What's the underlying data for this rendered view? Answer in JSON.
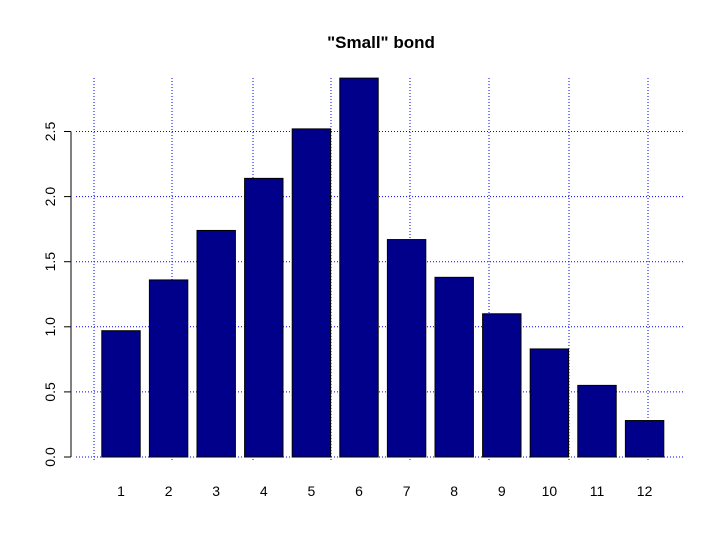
{
  "chart_data": {
    "type": "bar",
    "title": "\"Small\" bond",
    "xlabel": "",
    "ylabel": "",
    "categories": [
      "1",
      "2",
      "3",
      "4",
      "5",
      "6",
      "7",
      "8",
      "9",
      "10",
      "11",
      "12"
    ],
    "values": [
      0.97,
      1.36,
      1.74,
      2.14,
      2.52,
      2.91,
      1.67,
      1.38,
      1.1,
      0.83,
      0.55,
      0.28
    ],
    "ylim": [
      0,
      2.91
    ],
    "yticks": [
      "0.0",
      "0.5",
      "1.0",
      "1.5",
      "2.0",
      "2.5"
    ],
    "grid": true,
    "grid_style": "dotted",
    "bar_color": "#00008b",
    "grid_color": "#0000ff",
    "legend": "none"
  }
}
